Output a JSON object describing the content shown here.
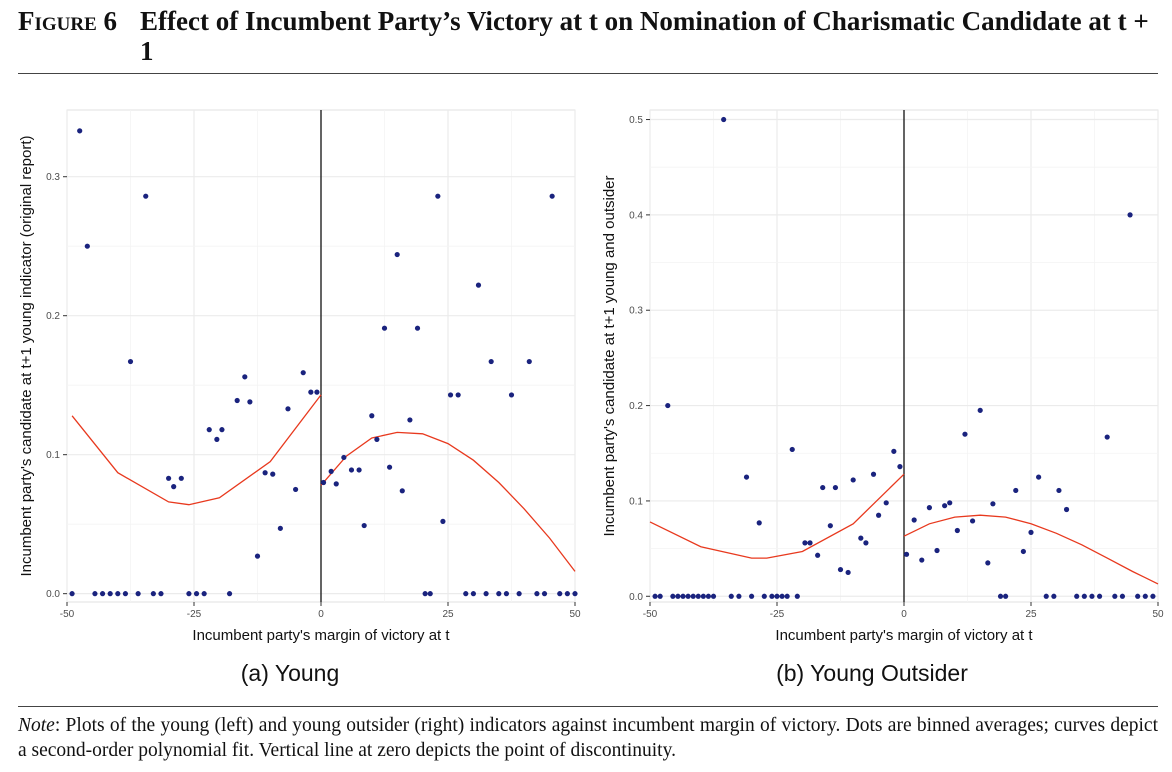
{
  "figure": {
    "number": "Figure 6",
    "title": "Effect of Incumbent Party’s Victory at t on Nomination of Charismatic Candidate at t + 1"
  },
  "note": {
    "label": "Note",
    "text": ": Plots of the young (left) and young outsider (right) indicators against incumbent margin of victory. Dots are binned averages; curves depict a second-order polynomial fit. Vertical line at zero depicts the point of discontinuity."
  },
  "colors": {
    "points": "#1a237e",
    "fit": "#e8391e",
    "grid": "#ebebeb",
    "axis": "#000000"
  },
  "chart_data": [
    {
      "type": "scatter",
      "caption": "(a) Young",
      "xlabel": "Incumbent party's margin of victory at t",
      "ylabel": "Incumbent party's candidate at t+1 young indicator (original report)",
      "xlim": [
        -50,
        50
      ],
      "ylim": [
        -0.006,
        0.348
      ],
      "xticks": [
        -50,
        -25,
        0,
        25,
        50
      ],
      "yticks": [
        0.0,
        0.1,
        0.2,
        0.3
      ],
      "ytick_labels": [
        "0.0",
        "0.1",
        "0.2",
        "0.3"
      ],
      "grid": true,
      "cutoff": 0,
      "points": [
        [
          -49,
          0.0
        ],
        [
          -47.5,
          0.333
        ],
        [
          -46,
          0.25
        ],
        [
          -44.5,
          0.0
        ],
        [
          -43,
          0.0
        ],
        [
          -41.5,
          0.0
        ],
        [
          -40,
          0.0
        ],
        [
          -38.5,
          0.0
        ],
        [
          -37.5,
          0.167
        ],
        [
          -36,
          0.0
        ],
        [
          -34.5,
          0.286
        ],
        [
          -33,
          0.0
        ],
        [
          -31.5,
          0.0
        ],
        [
          -30,
          0.083
        ],
        [
          -29,
          0.077
        ],
        [
          -27.5,
          0.083
        ],
        [
          -26,
          0.0
        ],
        [
          -24.5,
          0.0
        ],
        [
          -23,
          0.0
        ],
        [
          -22,
          0.118
        ],
        [
          -20.5,
          0.111
        ],
        [
          -19.5,
          0.118
        ],
        [
          -18,
          0.0
        ],
        [
          -16.5,
          0.139
        ],
        [
          -15,
          0.156
        ],
        [
          -14,
          0.138
        ],
        [
          -12.5,
          0.027
        ],
        [
          -11,
          0.087
        ],
        [
          -9.5,
          0.086
        ],
        [
          -8,
          0.047
        ],
        [
          -6.5,
          0.133
        ],
        [
          -5,
          0.075
        ],
        [
          -3.5,
          0.159
        ],
        [
          -2,
          0.145
        ],
        [
          -0.8,
          0.145
        ],
        [
          0.5,
          0.08
        ],
        [
          2,
          0.088
        ],
        [
          3,
          0.079
        ],
        [
          4.5,
          0.098
        ],
        [
          6,
          0.089
        ],
        [
          7.5,
          0.089
        ],
        [
          8.5,
          0.049
        ],
        [
          10,
          0.128
        ],
        [
          11,
          0.111
        ],
        [
          12.5,
          0.191
        ],
        [
          13.5,
          0.091
        ],
        [
          15,
          0.244
        ],
        [
          16,
          0.074
        ],
        [
          17.5,
          0.125
        ],
        [
          19,
          0.191
        ],
        [
          20.5,
          0.0
        ],
        [
          21.5,
          0.0
        ],
        [
          23,
          0.286
        ],
        [
          24,
          0.052
        ],
        [
          25.5,
          0.143
        ],
        [
          27,
          0.143
        ],
        [
          28.5,
          0.0
        ],
        [
          30,
          0.0
        ],
        [
          31,
          0.222
        ],
        [
          32.5,
          0.0
        ],
        [
          33.5,
          0.167
        ],
        [
          35,
          0.0
        ],
        [
          36.5,
          0.0
        ],
        [
          37.5,
          0.143
        ],
        [
          39,
          0.0
        ],
        [
          41,
          0.167
        ],
        [
          42.5,
          0.0
        ],
        [
          44,
          0.0
        ],
        [
          45.5,
          0.286
        ],
        [
          47,
          0.0
        ],
        [
          48.5,
          0.0
        ],
        [
          50,
          0.0
        ]
      ],
      "fits": [
        {
          "side": "left",
          "x": [
            -49,
            -40,
            -30,
            -26,
            -20,
            -10,
            0
          ],
          "y": [
            0.128,
            0.087,
            0.066,
            0.064,
            0.069,
            0.095,
            0.143
          ]
        },
        {
          "side": "right",
          "x": [
            0,
            5,
            10,
            15,
            20,
            25,
            30,
            35,
            40,
            45,
            50
          ],
          "y": [
            0.078,
            0.099,
            0.112,
            0.116,
            0.115,
            0.108,
            0.096,
            0.08,
            0.061,
            0.04,
            0.016
          ]
        }
      ]
    },
    {
      "type": "scatter",
      "caption": "(b) Young Outsider",
      "xlabel": "Incumbent party's margin of victory at t",
      "ylabel": "Incumbent party's candidate at t+1 young and outsider",
      "xlim": [
        -50,
        50
      ],
      "ylim": [
        -0.006,
        0.51
      ],
      "xticks": [
        -50,
        -25,
        0,
        25,
        50
      ],
      "yticks": [
        0.0,
        0.1,
        0.2,
        0.3,
        0.4,
        0.5
      ],
      "ytick_labels": [
        "0.0",
        "0.1",
        "0.2",
        "0.3",
        "0.4",
        "0.5"
      ],
      "grid": true,
      "cutoff": 0,
      "points": [
        [
          -49,
          0.0
        ],
        [
          -48,
          0.0
        ],
        [
          -46.5,
          0.2
        ],
        [
          -45.5,
          0.0
        ],
        [
          -44.5,
          0.0
        ],
        [
          -43.5,
          0.0
        ],
        [
          -42.5,
          0.0
        ],
        [
          -41.5,
          0.0
        ],
        [
          -40.5,
          0.0
        ],
        [
          -39.5,
          0.0
        ],
        [
          -38.5,
          0.0
        ],
        [
          -37.5,
          0.0
        ],
        [
          -35.5,
          0.5
        ],
        [
          -34,
          0.0
        ],
        [
          -32.5,
          0.0
        ],
        [
          -31,
          0.125
        ],
        [
          -30,
          0.0
        ],
        [
          -28.5,
          0.077
        ],
        [
          -27.5,
          0.0
        ],
        [
          -26,
          0.0
        ],
        [
          -25,
          0.0
        ],
        [
          -24,
          0.0
        ],
        [
          -23,
          0.0
        ],
        [
          -22,
          0.154
        ],
        [
          -21,
          0.0
        ],
        [
          -19.5,
          0.056
        ],
        [
          -18.5,
          0.056
        ],
        [
          -17,
          0.043
        ],
        [
          -16,
          0.114
        ],
        [
          -14.5,
          0.074
        ],
        [
          -13.5,
          0.114
        ],
        [
          -12.5,
          0.028
        ],
        [
          -11,
          0.025
        ],
        [
          -10,
          0.122
        ],
        [
          -8.5,
          0.061
        ],
        [
          -7.5,
          0.056
        ],
        [
          -6,
          0.128
        ],
        [
          -5,
          0.085
        ],
        [
          -3.5,
          0.098
        ],
        [
          -2,
          0.152
        ],
        [
          -0.8,
          0.136
        ],
        [
          0.5,
          0.044
        ],
        [
          2,
          0.08
        ],
        [
          3.5,
          0.038
        ],
        [
          5,
          0.093
        ],
        [
          6.5,
          0.048
        ],
        [
          8,
          0.095
        ],
        [
          9,
          0.098
        ],
        [
          10.5,
          0.069
        ],
        [
          12,
          0.17
        ],
        [
          13.5,
          0.079
        ],
        [
          15,
          0.195
        ],
        [
          16.5,
          0.035
        ],
        [
          17.5,
          0.097
        ],
        [
          19,
          0.0
        ],
        [
          20,
          0.0
        ],
        [
          22,
          0.111
        ],
        [
          23.5,
          0.047
        ],
        [
          25,
          0.067
        ],
        [
          26.5,
          0.125
        ],
        [
          28,
          0.0
        ],
        [
          29.5,
          0.0
        ],
        [
          30.5,
          0.111
        ],
        [
          32,
          0.091
        ],
        [
          34,
          0.0
        ],
        [
          35.5,
          0.0
        ],
        [
          37,
          0.0
        ],
        [
          38.5,
          0.0
        ],
        [
          40,
          0.167
        ],
        [
          41.5,
          0.0
        ],
        [
          43,
          0.0
        ],
        [
          44.5,
          0.4
        ],
        [
          46,
          0.0
        ],
        [
          47.5,
          0.0
        ],
        [
          49,
          0.0
        ]
      ],
      "fits": [
        {
          "side": "left",
          "x": [
            -50,
            -40,
            -30,
            -27,
            -20,
            -10,
            0
          ],
          "y": [
            0.078,
            0.052,
            0.04,
            0.04,
            0.047,
            0.076,
            0.128
          ]
        },
        {
          "side": "right",
          "x": [
            0,
            5,
            10,
            15,
            20,
            25,
            30,
            35,
            40,
            45,
            50
          ],
          "y": [
            0.063,
            0.076,
            0.083,
            0.085,
            0.083,
            0.076,
            0.066,
            0.054,
            0.04,
            0.026,
            0.013
          ]
        }
      ]
    }
  ]
}
